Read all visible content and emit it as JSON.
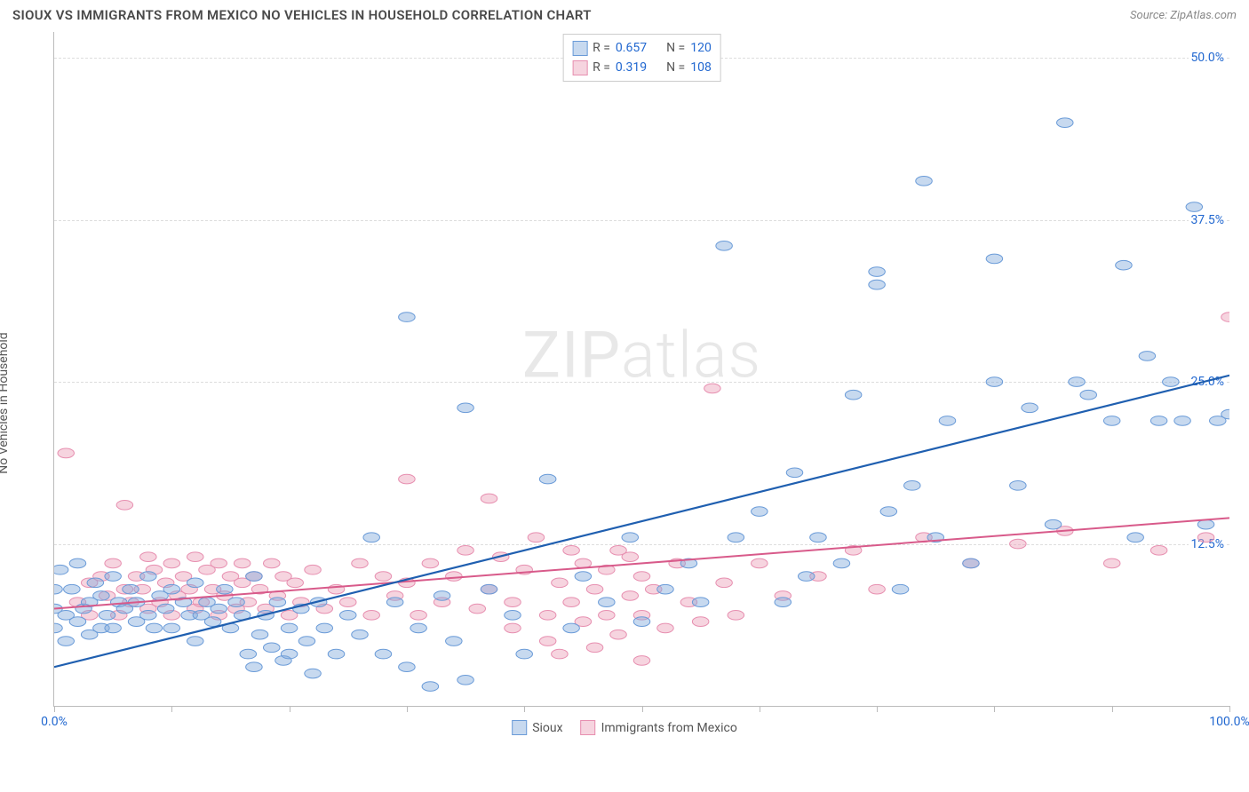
{
  "title": "SIOUX VS IMMIGRANTS FROM MEXICO NO VEHICLES IN HOUSEHOLD CORRELATION CHART",
  "source": "Source: ZipAtlas.com",
  "ylabel": "No Vehicles in Household",
  "watermark_a": "ZIP",
  "watermark_b": "atlas",
  "chart": {
    "type": "scatter",
    "xlim": [
      0,
      100
    ],
    "ylim": [
      0,
      52
    ],
    "xtick_positions": [
      0,
      10,
      20,
      30,
      40,
      50,
      60,
      70,
      80,
      90,
      100
    ],
    "xtick_labels": {
      "0": "0.0%",
      "100": "100.0%"
    },
    "ytick_positions": [
      12.5,
      25.0,
      37.5,
      50.0
    ],
    "ytick_labels": [
      "12.5%",
      "25.0%",
      "37.5%",
      "50.0%"
    ],
    "grid_color": "#dddddd",
    "axis_color": "#bbbbbb",
    "background_color": "#ffffff",
    "point_radius": 7,
    "series": [
      {
        "name": "Sioux",
        "fill": "rgba(130,170,220,0.45)",
        "stroke": "#6a9bd8",
        "line_color": "#1f5fb0",
        "line_width": 2.2,
        "trend": {
          "y_at_x0": 3.0,
          "y_at_x100": 25.5
        },
        "r": "0.657",
        "n": "120",
        "points": [
          [
            0,
            6
          ],
          [
            0,
            7.5
          ],
          [
            0,
            9
          ],
          [
            0.5,
            10.5
          ],
          [
            1,
            5
          ],
          [
            1,
            7
          ],
          [
            1.5,
            9
          ],
          [
            2,
            6.5
          ],
          [
            2,
            11
          ],
          [
            2.5,
            7.5
          ],
          [
            3,
            8
          ],
          [
            3,
            5.5
          ],
          [
            3.5,
            9.5
          ],
          [
            4,
            6
          ],
          [
            4,
            8.5
          ],
          [
            4.5,
            7
          ],
          [
            5,
            10
          ],
          [
            5,
            6
          ],
          [
            5.5,
            8
          ],
          [
            6,
            7.5
          ],
          [
            6.5,
            9
          ],
          [
            7,
            6.5
          ],
          [
            7,
            8
          ],
          [
            8,
            7
          ],
          [
            8,
            10
          ],
          [
            8.5,
            6
          ],
          [
            9,
            8.5
          ],
          [
            9.5,
            7.5
          ],
          [
            10,
            9
          ],
          [
            10,
            6
          ],
          [
            11,
            8
          ],
          [
            11.5,
            7
          ],
          [
            12,
            5
          ],
          [
            12,
            9.5
          ],
          [
            12.5,
            7
          ],
          [
            13,
            8
          ],
          [
            13.5,
            6.5
          ],
          [
            14,
            7.5
          ],
          [
            14.5,
            9
          ],
          [
            15,
            6
          ],
          [
            15.5,
            8
          ],
          [
            16,
            7
          ],
          [
            16.5,
            4
          ],
          [
            17,
            10
          ],
          [
            17,
            3
          ],
          [
            17.5,
            5.5
          ],
          [
            18,
            7
          ],
          [
            18.5,
            4.5
          ],
          [
            19,
            8
          ],
          [
            19.5,
            3.5
          ],
          [
            20,
            6
          ],
          [
            20,
            4
          ],
          [
            21,
            7.5
          ],
          [
            21.5,
            5
          ],
          [
            22,
            2.5
          ],
          [
            22.5,
            8
          ],
          [
            23,
            6
          ],
          [
            24,
            4
          ],
          [
            25,
            7
          ],
          [
            26,
            5.5
          ],
          [
            27,
            13
          ],
          [
            28,
            4
          ],
          [
            29,
            8
          ],
          [
            30,
            3
          ],
          [
            30,
            30
          ],
          [
            31,
            6
          ],
          [
            32,
            1.5
          ],
          [
            33,
            8.5
          ],
          [
            34,
            5
          ],
          [
            35,
            23
          ],
          [
            35,
            2
          ],
          [
            37,
            9
          ],
          [
            39,
            7
          ],
          [
            40,
            4
          ],
          [
            42,
            17.5
          ],
          [
            44,
            6
          ],
          [
            45,
            10
          ],
          [
            47,
            8
          ],
          [
            49,
            13
          ],
          [
            50,
            6.5
          ],
          [
            52,
            9
          ],
          [
            54,
            11
          ],
          [
            55,
            8
          ],
          [
            57,
            35.5
          ],
          [
            58,
            13
          ],
          [
            60,
            15
          ],
          [
            62,
            8
          ],
          [
            63,
            18
          ],
          [
            64,
            10
          ],
          [
            65,
            13
          ],
          [
            67,
            11
          ],
          [
            68,
            24
          ],
          [
            70,
            32.5
          ],
          [
            70,
            33.5
          ],
          [
            71,
            15
          ],
          [
            72,
            9
          ],
          [
            73,
            17
          ],
          [
            74,
            40.5
          ],
          [
            75,
            13
          ],
          [
            76,
            22
          ],
          [
            78,
            11
          ],
          [
            80,
            34.5
          ],
          [
            80,
            25
          ],
          [
            82,
            17
          ],
          [
            83,
            23
          ],
          [
            85,
            14
          ],
          [
            86,
            45
          ],
          [
            87,
            25
          ],
          [
            88,
            24
          ],
          [
            90,
            22
          ],
          [
            91,
            34
          ],
          [
            92,
            13
          ],
          [
            93,
            27
          ],
          [
            94,
            22
          ],
          [
            95,
            25
          ],
          [
            96,
            22
          ],
          [
            97,
            38.5
          ],
          [
            98,
            14
          ],
          [
            99,
            22
          ],
          [
            100,
            22.5
          ]
        ]
      },
      {
        "name": "Immigrants from Mexico",
        "fill": "rgba(235,160,185,0.45)",
        "stroke": "#e78fb0",
        "line_color": "#d85a8a",
        "line_width": 2.0,
        "trend": {
          "y_at_x0": 7.5,
          "y_at_x100": 14.5
        },
        "r": "0.319",
        "n": "108",
        "points": [
          [
            1,
            19.5
          ],
          [
            2,
            8
          ],
          [
            3,
            9.5
          ],
          [
            3,
            7
          ],
          [
            4,
            10
          ],
          [
            4.5,
            8.5
          ],
          [
            5,
            11
          ],
          [
            5.5,
            7
          ],
          [
            6,
            9
          ],
          [
            6,
            15.5
          ],
          [
            6.5,
            8
          ],
          [
            7,
            10
          ],
          [
            7.5,
            9
          ],
          [
            8,
            11.5
          ],
          [
            8,
            7.5
          ],
          [
            8.5,
            10.5
          ],
          [
            9,
            8
          ],
          [
            9.5,
            9.5
          ],
          [
            10,
            7
          ],
          [
            10,
            11
          ],
          [
            10.5,
            8.5
          ],
          [
            11,
            10
          ],
          [
            11.5,
            9
          ],
          [
            12,
            7.5
          ],
          [
            12,
            11.5
          ],
          [
            12.5,
            8
          ],
          [
            13,
            10.5
          ],
          [
            13.5,
            9
          ],
          [
            14,
            7
          ],
          [
            14,
            11
          ],
          [
            14.5,
            8.5
          ],
          [
            15,
            10
          ],
          [
            15.5,
            7.5
          ],
          [
            16,
            9.5
          ],
          [
            16,
            11
          ],
          [
            16.5,
            8
          ],
          [
            17,
            10
          ],
          [
            17.5,
            9
          ],
          [
            18,
            7.5
          ],
          [
            18.5,
            11
          ],
          [
            19,
            8.5
          ],
          [
            19.5,
            10
          ],
          [
            20,
            7
          ],
          [
            20.5,
            9.5
          ],
          [
            21,
            8
          ],
          [
            22,
            10.5
          ],
          [
            23,
            7.5
          ],
          [
            24,
            9
          ],
          [
            25,
            8
          ],
          [
            26,
            11
          ],
          [
            27,
            7
          ],
          [
            28,
            10
          ],
          [
            29,
            8.5
          ],
          [
            30,
            17.5
          ],
          [
            30,
            9.5
          ],
          [
            31,
            7
          ],
          [
            32,
            11
          ],
          [
            33,
            8
          ],
          [
            34,
            10
          ],
          [
            35,
            12
          ],
          [
            36,
            7.5
          ],
          [
            37,
            16
          ],
          [
            37,
            9
          ],
          [
            38,
            11.5
          ],
          [
            39,
            8
          ],
          [
            39,
            6
          ],
          [
            40,
            10.5
          ],
          [
            41,
            13
          ],
          [
            42,
            7
          ],
          [
            42,
            5
          ],
          [
            43,
            9.5
          ],
          [
            43,
            4
          ],
          [
            44,
            12
          ],
          [
            44,
            8
          ],
          [
            45,
            6.5
          ],
          [
            45,
            11
          ],
          [
            46,
            9
          ],
          [
            46,
            4.5
          ],
          [
            47,
            10.5
          ],
          [
            47,
            7
          ],
          [
            48,
            12
          ],
          [
            48,
            5.5
          ],
          [
            49,
            8.5
          ],
          [
            49,
            11.5
          ],
          [
            50,
            7
          ],
          [
            50,
            10
          ],
          [
            50,
            3.5
          ],
          [
            51,
            9
          ],
          [
            52,
            6
          ],
          [
            53,
            11
          ],
          [
            54,
            8
          ],
          [
            56,
            24.5
          ],
          [
            57,
            9.5
          ],
          [
            58,
            7
          ],
          [
            60,
            11
          ],
          [
            62,
            8.5
          ],
          [
            65,
            10
          ],
          [
            68,
            12
          ],
          [
            70,
            9
          ],
          [
            74,
            13
          ],
          [
            78,
            11
          ],
          [
            82,
            12.5
          ],
          [
            86,
            13.5
          ],
          [
            90,
            11
          ],
          [
            94,
            12
          ],
          [
            98,
            13
          ],
          [
            100,
            30
          ],
          [
            55,
            6.5
          ]
        ]
      }
    ]
  },
  "legend_top": {
    "r_label": "R =",
    "n_label": "N ="
  },
  "legend_bottom": {
    "items": [
      "Sioux",
      "Immigrants from Mexico"
    ]
  }
}
